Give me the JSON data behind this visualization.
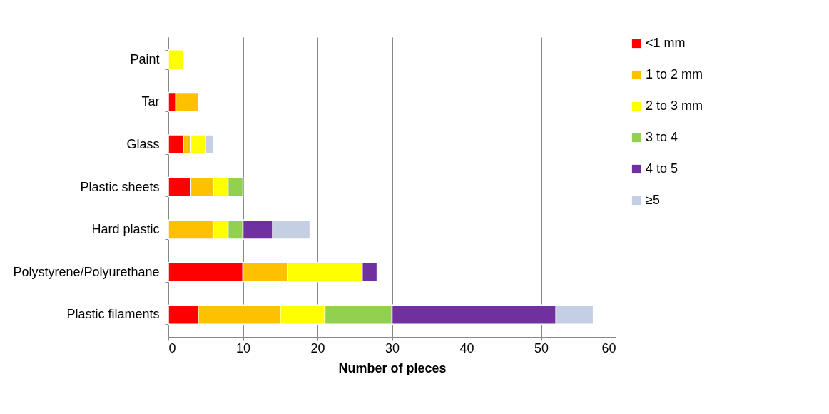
{
  "chart_data": {
    "type": "bar",
    "orientation": "horizontal",
    "stacked": true,
    "xlabel": "Number of pieces",
    "categories": [
      "Paint",
      "Tar",
      "Glass",
      "Plastic sheets",
      "Hard plastic",
      "Polystyrene/Polyurethane",
      "Plastic filaments"
    ],
    "series": [
      {
        "name": "<1 mm",
        "color": "#ff0000",
        "values": [
          null,
          1,
          2,
          3,
          null,
          10,
          4
        ]
      },
      {
        "name": "1 to 2 mm",
        "color": "#ffc000",
        "values": [
          null,
          3,
          1,
          3,
          6,
          6,
          11
        ]
      },
      {
        "name": "2 to 3 mm",
        "color": "#ffff00",
        "values": [
          2,
          null,
          2,
          2,
          2,
          10,
          6
        ]
      },
      {
        "name": "3 to 4",
        "color": "#92d050",
        "values": [
          null,
          null,
          null,
          2,
          2,
          null,
          9
        ]
      },
      {
        "name": "4 to 5",
        "color": "#7030a0",
        "values": [
          null,
          null,
          null,
          null,
          4,
          2,
          22
        ]
      },
      {
        "name": "≥5",
        "color": "#c5cfe3",
        "values": [
          null,
          null,
          1,
          null,
          5,
          null,
          5
        ]
      }
    ],
    "xlim": [
      0,
      60
    ],
    "xticks": [
      0,
      10,
      20,
      30,
      40,
      50,
      60
    ],
    "grid": "x",
    "legend": "right"
  }
}
